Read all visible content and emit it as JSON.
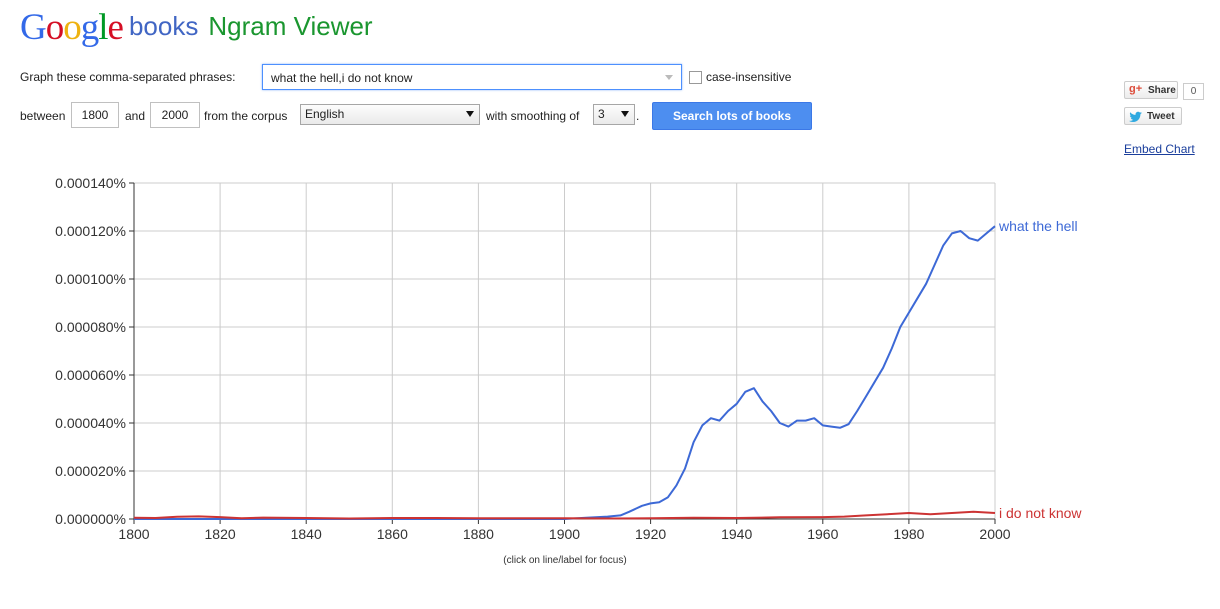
{
  "header": {
    "google": "Google",
    "google_letters": [
      {
        "ch": "G",
        "color": "#3369e8"
      },
      {
        "ch": "o",
        "color": "#d50f25"
      },
      {
        "ch": "o",
        "color": "#eeb211"
      },
      {
        "ch": "g",
        "color": "#3369e8"
      },
      {
        "ch": "l",
        "color": "#009925"
      },
      {
        "ch": "e",
        "color": "#d50f25"
      }
    ],
    "books": "books",
    "ngram": "Ngram Viewer"
  },
  "form": {
    "phrases_label": "Graph these comma-separated phrases:",
    "phrases_value": "what the hell,i do not know",
    "case_insensitive_label": "case-insensitive",
    "between_label": "between",
    "start_year": "1800",
    "and_label": "and",
    "end_year": "2000",
    "corpus_label": "from the corpus",
    "corpus_value": "English",
    "smoothing_label": "with smoothing of",
    "smoothing_value": "3",
    "period": ".",
    "search_button": "Search lots of books"
  },
  "social": {
    "share_label": "Share",
    "share_count": "0",
    "tweet_label": "Tweet",
    "embed_label": "Embed Chart"
  },
  "caption": "(click on line/label for focus)",
  "chart_data": {
    "type": "line",
    "title": "",
    "xlabel": "",
    "ylabel": "",
    "xlim": [
      1800,
      2000
    ],
    "ylim": [
      0,
      0.00014
    ],
    "grid": true,
    "legend": "right-end labels",
    "x_ticks": [
      "1800",
      "1820",
      "1840",
      "1860",
      "1880",
      "1900",
      "1920",
      "1940",
      "1960",
      "1980",
      "2000"
    ],
    "y_ticks": [
      "0.000000%",
      "0.000020%",
      "0.000040%",
      "0.000060%",
      "0.000080%",
      "0.000100%",
      "0.000120%",
      "0.000140%"
    ],
    "series": [
      {
        "name": "what the hell",
        "color": "#3d69d6",
        "points": [
          [
            1800,
            0
          ],
          [
            1900,
            0
          ],
          [
            1905,
            5e-07
          ],
          [
            1910,
            1e-06
          ],
          [
            1913,
            1.5e-06
          ],
          [
            1915,
            3e-06
          ],
          [
            1918,
            5.5e-06
          ],
          [
            1920,
            6.5e-06
          ],
          [
            1922,
            7e-06
          ],
          [
            1924,
            9e-06
          ],
          [
            1926,
            1.4e-05
          ],
          [
            1928,
            2.1e-05
          ],
          [
            1930,
            3.2e-05
          ],
          [
            1932,
            3.9e-05
          ],
          [
            1934,
            4.2e-05
          ],
          [
            1936,
            4.1e-05
          ],
          [
            1938,
            4.5e-05
          ],
          [
            1940,
            4.8e-05
          ],
          [
            1942,
            5.3e-05
          ],
          [
            1944,
            5.45e-05
          ],
          [
            1946,
            4.9e-05
          ],
          [
            1948,
            4.5e-05
          ],
          [
            1950,
            4e-05
          ],
          [
            1952,
            3.85e-05
          ],
          [
            1954,
            4.1e-05
          ],
          [
            1956,
            4.1e-05
          ],
          [
            1958,
            4.2e-05
          ],
          [
            1960,
            3.9e-05
          ],
          [
            1962,
            3.85e-05
          ],
          [
            1964,
            3.8e-05
          ],
          [
            1966,
            3.95e-05
          ],
          [
            1968,
            4.5e-05
          ],
          [
            1970,
            5.1e-05
          ],
          [
            1972,
            5.7e-05
          ],
          [
            1974,
            6.3e-05
          ],
          [
            1976,
            7.1e-05
          ],
          [
            1978,
            8e-05
          ],
          [
            1980,
            8.6e-05
          ],
          [
            1982,
            9.2e-05
          ],
          [
            1984,
            9.8e-05
          ],
          [
            1986,
            0.000106
          ],
          [
            1988,
            0.000114
          ],
          [
            1990,
            0.000119
          ],
          [
            1992,
            0.00012
          ],
          [
            1994,
            0.000117
          ],
          [
            1996,
            0.000116
          ],
          [
            1998,
            0.000119
          ],
          [
            2000,
            0.000122
          ]
        ]
      },
      {
        "name": "i do not know",
        "color": "#cc3333",
        "points": [
          [
            1800,
            5e-07
          ],
          [
            1805,
            4e-07
          ],
          [
            1810,
            9e-07
          ],
          [
            1815,
            1.1e-06
          ],
          [
            1820,
            8e-07
          ],
          [
            1825,
            3e-07
          ],
          [
            1830,
            6e-07
          ],
          [
            1840,
            4e-07
          ],
          [
            1850,
            2e-07
          ],
          [
            1860,
            4e-07
          ],
          [
            1870,
            4e-07
          ],
          [
            1880,
            3e-07
          ],
          [
            1890,
            3e-07
          ],
          [
            1900,
            3e-07
          ],
          [
            1910,
            2e-07
          ],
          [
            1920,
            3e-07
          ],
          [
            1930,
            5e-07
          ],
          [
            1940,
            4e-07
          ],
          [
            1950,
            7e-07
          ],
          [
            1960,
            8e-07
          ],
          [
            1965,
            1e-06
          ],
          [
            1970,
            1.5e-06
          ],
          [
            1975,
            2e-06
          ],
          [
            1980,
            2.5e-06
          ],
          [
            1985,
            2e-06
          ],
          [
            1990,
            2.5e-06
          ],
          [
            1995,
            3e-06
          ],
          [
            2000,
            2.5e-06
          ]
        ]
      }
    ]
  }
}
